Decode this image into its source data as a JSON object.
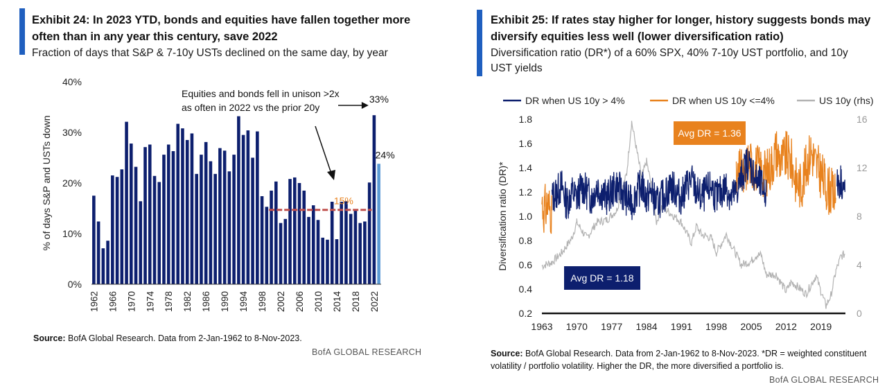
{
  "left": {
    "title_line1": "Exhibit 24: In 2023 YTD, bonds and equities have fallen together more",
    "title_line2": "often than in any year this century, save 2022",
    "subtitle": "Fraction of days that S&P & 7-10y USTs declined on the same day, by year",
    "source_label": "Source:",
    "source_text": " BofA Global Research. Data from 2-Jan-1962 to 8-Nov-2023.",
    "brand": "BofA GLOBAL RESEARCH"
  },
  "right": {
    "title_line1": "Exhibit 25: If rates stay higher for longer, history suggests bonds may",
    "title_line2": "diversify equities less well (lower diversification ratio)",
    "subtitle_line1": "Diversification ratio (DR*) of a 60% SPX, 40% 7-10y UST portfolio, and 10y",
    "subtitle_line2": "UST yields",
    "source_label": "Source:",
    "source_line1": " BofA Global Research. Data from 2-Jan-1962 to 8-Nov-2023. *DR = weighted constituent",
    "source_line2": "volatility / portfolio volatility. Higher the DR, the more diversified a portfolio is.",
    "brand": "BofA GLOBAL RESEARCH"
  },
  "colors": {
    "navy": "#0d1f6e",
    "light_blue": "#5b9bd5",
    "dashed_red": "#c0504d",
    "orange": "#e8821e",
    "gray": "#b3b3b3",
    "accent": "#1f5fbf"
  },
  "chart_data": [
    {
      "type": "bar",
      "ylabel": "% of days S&P and USTs down",
      "ylim": [
        0,
        40
      ],
      "yticks": [
        "0%",
        "10%",
        "20%",
        "30%",
        "40%"
      ],
      "xtick_labels": [
        "1962",
        "1966",
        "1970",
        "1974",
        "1978",
        "1982",
        "1986",
        "1990",
        "1994",
        "1998",
        "2002",
        "2006",
        "2010",
        "2014",
        "2018",
        "2022"
      ],
      "categories": [
        "1962",
        "1963",
        "1964",
        "1965",
        "1966",
        "1967",
        "1968",
        "1969",
        "1970",
        "1971",
        "1972",
        "1973",
        "1974",
        "1975",
        "1976",
        "1977",
        "1978",
        "1979",
        "1980",
        "1981",
        "1982",
        "1983",
        "1984",
        "1985",
        "1986",
        "1987",
        "1988",
        "1989",
        "1990",
        "1991",
        "1992",
        "1993",
        "1994",
        "1995",
        "1996",
        "1997",
        "1998",
        "1999",
        "2000",
        "2001",
        "2002",
        "2003",
        "2004",
        "2005",
        "2006",
        "2007",
        "2008",
        "2009",
        "2010",
        "2011",
        "2012",
        "2013",
        "2014",
        "2015",
        "2016",
        "2017",
        "2018",
        "2019",
        "2020",
        "2021",
        "2022",
        "2023"
      ],
      "values": [
        17.5,
        12.4,
        7.1,
        8.6,
        21.5,
        21.2,
        22.7,
        32.1,
        27.8,
        23.2,
        16.4,
        27.1,
        27.6,
        21.4,
        20.2,
        25.6,
        27.6,
        26.3,
        31.7,
        30.8,
        28.5,
        29.8,
        21.8,
        25.6,
        28.1,
        24.3,
        21.8,
        26.9,
        26.4,
        22.3,
        25.6,
        33.2,
        29.5,
        30.4,
        25.0,
        30.2,
        17.4,
        15.3,
        18.5,
        20.3,
        12.1,
        12.9,
        20.8,
        21.1,
        20.0,
        18.5,
        13.3,
        15.6,
        12.7,
        9.2,
        8.8,
        16.3,
        8.9,
        16.3,
        16.4,
        13.9,
        14.7,
        12.1,
        12.4,
        20.1,
        33.4,
        23.8
      ],
      "highlight_last": true,
      "avg_line": {
        "value": 14.7,
        "label": "15%",
        "from": "2000",
        "to": "2021"
      },
      "annotations": {
        "text_line1": "Equities and bonds fell in unison >2x",
        "text_line2": "as often in 2022 vs the prior 20y",
        "label_2022": "33%",
        "label_2023": "24%"
      }
    },
    {
      "type": "line",
      "ylabel_left": "Diversification ratio (DR)*",
      "ylim_left": [
        0.2,
        1.8
      ],
      "yticks_left": [
        "0.2",
        "0.4",
        "0.6",
        "0.8",
        "1.0",
        "1.2",
        "1.4",
        "1.6",
        "1.8"
      ],
      "ylim_right": [
        0,
        16
      ],
      "yticks_right": [
        "0",
        "4",
        "8",
        "12",
        "16"
      ],
      "xlim": [
        1963,
        2023.9
      ],
      "xtick_labels": [
        "1963",
        "1970",
        "1977",
        "1984",
        "1991",
        "1998",
        "2005",
        "2012",
        "2019"
      ],
      "legend": {
        "placement": "top",
        "navy": "DR when US 10y > 4%",
        "orange": "DR when US 10y <=4%",
        "gray": "US 10y (rhs)"
      },
      "annotations": {
        "avg_high": "Avg DR = 1.36",
        "avg_low": "Avg DR = 1.18"
      },
      "series": [
        {
          "name": "US 10y (rhs)",
          "axis": "right",
          "x": [
            1963,
            1965,
            1967,
            1969,
            1970,
            1972,
            1974,
            1976,
            1978,
            1979,
            1980,
            1981,
            1982,
            1983,
            1984,
            1985,
            1986,
            1987,
            1989,
            1991,
            1993,
            1994,
            1995,
            1997,
            1998,
            2000,
            2003,
            2005,
            2006,
            2007,
            2008,
            2010,
            2012,
            2013,
            2014,
            2016,
            2018,
            2019,
            2020,
            2021,
            2022,
            2023,
            2023.8
          ],
          "values": [
            3.9,
            4.2,
            5.0,
            6.2,
            7.5,
            6.2,
            7.5,
            7.7,
            8.5,
            10.0,
            11.5,
            15.8,
            13.5,
            11.2,
            12.5,
            10.5,
            7.5,
            8.8,
            8.2,
            7.5,
            5.8,
            7.2,
            6.5,
            6.2,
            5.0,
            6.5,
            4.0,
            4.3,
            4.8,
            4.8,
            3.2,
            3.2,
            1.8,
            2.6,
            2.3,
            1.6,
            3.1,
            1.8,
            0.6,
            1.5,
            3.5,
            4.7,
            4.9
          ]
        },
        {
          "name": "DR when US 10y <=4%",
          "axis": "left",
          "x": [
            1963,
            1963.5,
            1964,
            1965,
            2002,
            2002.8,
            2003.6,
            2004.2,
            2008,
            2009,
            2010,
            2011,
            2012,
            2013,
            2014,
            2015,
            2016,
            2017,
            2018,
            2019,
            2020,
            2021,
            2022
          ],
          "values": [
            1.12,
            1.05,
            1.1,
            1.05,
            1.25,
            1.38,
            1.28,
            1.45,
            1.35,
            1.42,
            1.55,
            1.45,
            1.5,
            1.45,
            1.3,
            1.25,
            1.4,
            1.55,
            1.42,
            1.35,
            1.25,
            1.2,
            1.15
          ]
        },
        {
          "name": "DR when US 10y > 4%",
          "axis": "left",
          "x": [
            1965,
            1966,
            1967,
            1968,
            1969,
            1970,
            1971,
            1972,
            1973,
            1974,
            1975,
            1976,
            1977,
            1978,
            1979,
            1980,
            1981,
            1982,
            1983,
            1984,
            1985,
            1986,
            1987,
            1988,
            1989,
            1990,
            1991,
            1992,
            1993,
            1994,
            1995,
            1996,
            1997,
            1998,
            1999,
            2000,
            2001,
            2002,
            2004.2,
            2005,
            2006,
            2007,
            2008,
            2022.2,
            2023,
            2023.8
          ],
          "values": [
            1.15,
            1.2,
            1.25,
            1.1,
            1.2,
            1.15,
            1.25,
            1.2,
            1.15,
            1.25,
            1.2,
            1.15,
            1.2,
            1.25,
            1.2,
            1.15,
            1.1,
            1.2,
            1.25,
            1.15,
            1.2,
            1.1,
            1.15,
            1.2,
            1.25,
            1.2,
            1.15,
            1.25,
            1.3,
            1.2,
            1.15,
            1.2,
            1.25,
            1.15,
            1.2,
            1.25,
            1.15,
            1.2,
            1.45,
            1.4,
            1.3,
            1.25,
            1.2,
            1.25,
            1.3,
            1.2
          ]
        }
      ]
    }
  ]
}
